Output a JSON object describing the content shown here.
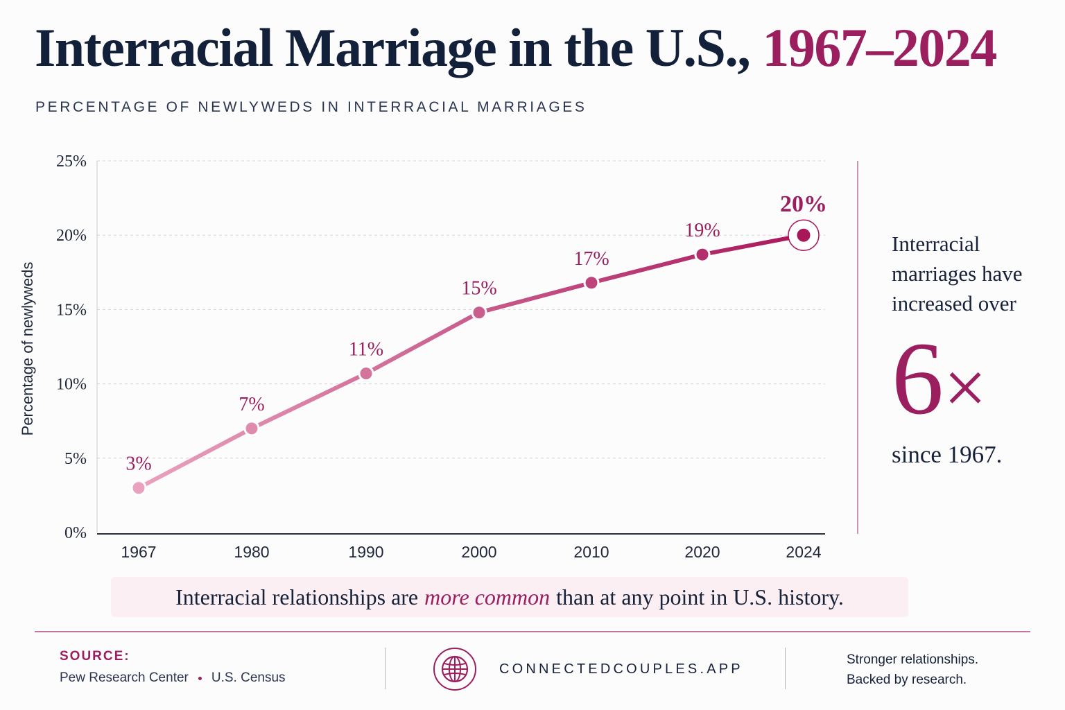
{
  "header": {
    "title_main": "Interracial Marriage in the U.S.,",
    "title_years": "1967–2024",
    "subtitle": "PERCENTAGE OF NEWLYWEDS IN INTERRACIAL MARRIAGES"
  },
  "chart_data": {
    "type": "line",
    "x": [
      "1967",
      "1980",
      "1990",
      "2000",
      "2010",
      "2020",
      "2024"
    ],
    "values": [
      3,
      7,
      10.7,
      14.8,
      16.8,
      18.7,
      20
    ],
    "data_labels": [
      "3%",
      "7%",
      "11%",
      "15%",
      "17%",
      "19%",
      "20%"
    ],
    "ylabel": "Percentage of newlyweds",
    "ylim": [
      0,
      25
    ],
    "yticks": [
      "0%",
      "5%",
      "10%",
      "15%",
      "20%",
      "25%"
    ],
    "grid": true,
    "colors": {
      "start": "#eaa2bf",
      "end": "#a8175a",
      "label": "#9b1f5e",
      "axis": "#1d2638"
    }
  },
  "callout": {
    "line1": "Interracial",
    "line2": "marriages have",
    "line3": "increased over",
    "multiplier": "6",
    "times": "×",
    "since": "since 1967."
  },
  "banner": {
    "before": "Interracial relationships are",
    "emphasis": "more common",
    "after": "than at any point in U.S. history."
  },
  "footer": {
    "source_label": "SOURCE:",
    "source_1": "Pew Research Center",
    "source_2": "U.S. Census",
    "site": "CONNECTEDCOUPLES.APP",
    "tagline_1": "Stronger relationships.",
    "tagline_2": "Backed by research.",
    "globe_icon": "globe-icon"
  }
}
